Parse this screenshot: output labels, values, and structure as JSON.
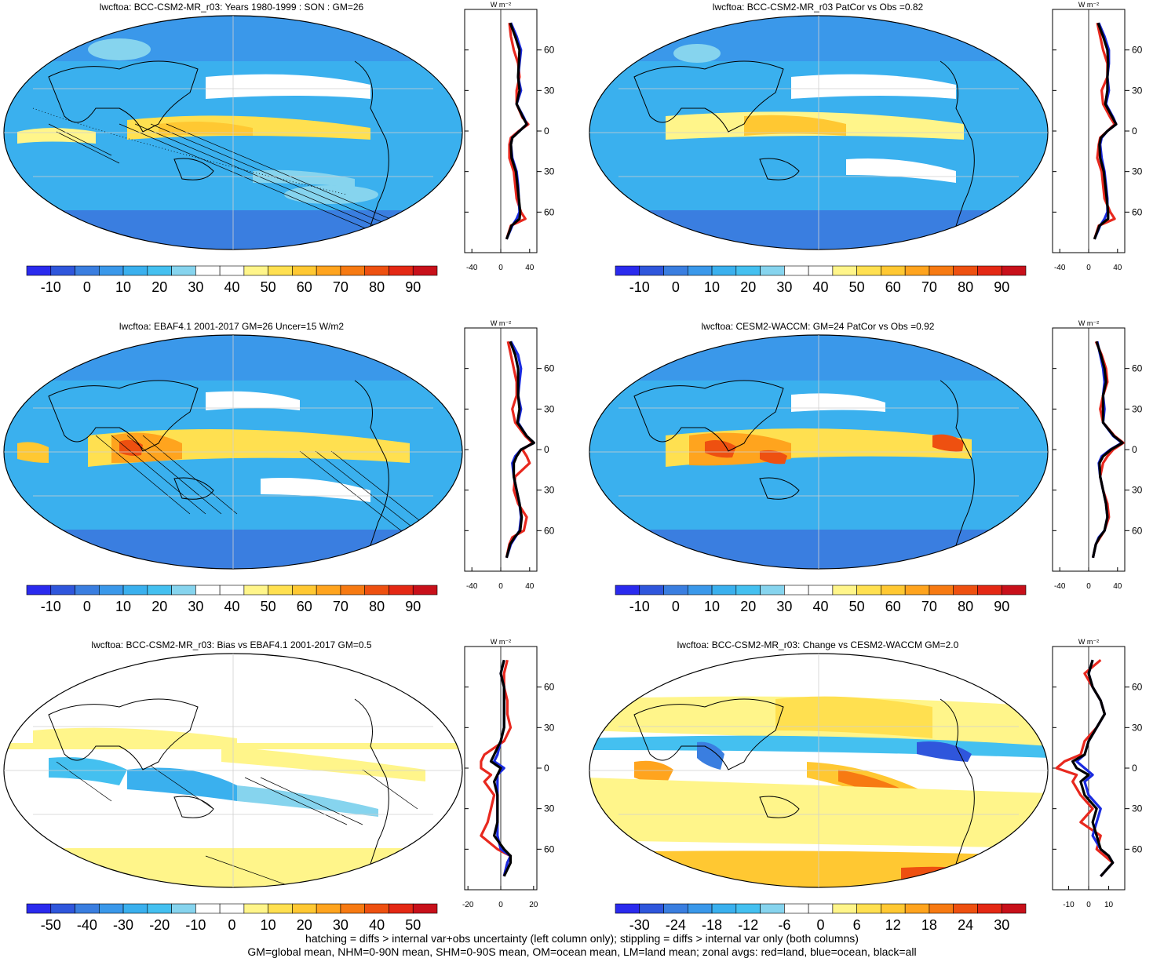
{
  "panels": [
    {
      "id": "p1",
      "title": "lwcftoa: BCC-CSM2-MR_r03: Years 1980-1999 : SON : GM=26",
      "colorbar": {
        "labels": [
          "-10",
          "0",
          "10",
          "20",
          "30",
          "40",
          "50",
          "60",
          "70",
          "80",
          "90"
        ],
        "scheme": "full"
      },
      "profile": {
        "xticks": [
          "-40",
          "0",
          "40"
        ],
        "xmin": -50,
        "xmax": 50,
        "zero": 0
      },
      "hatching": true
    },
    {
      "id": "p2",
      "title": "lwcftoa: BCC-CSM2-MR_r03 PatCor vs Obs =0.82",
      "colorbar": {
        "labels": [
          "-10",
          "0",
          "10",
          "20",
          "30",
          "40",
          "50",
          "60",
          "70",
          "80",
          "90"
        ],
        "scheme": "full"
      },
      "profile": {
        "xticks": [
          "-40",
          "0",
          "40"
        ],
        "xmin": -50,
        "xmax": 50,
        "zero": 0
      },
      "hatching": false
    },
    {
      "id": "p3",
      "title": "lwcftoa: EBAF4.1 2001-2017 GM=26 Uncer=15 W/m2",
      "colorbar": {
        "labels": [
          "-10",
          "0",
          "10",
          "20",
          "30",
          "40",
          "50",
          "60",
          "70",
          "80",
          "90"
        ],
        "scheme": "full"
      },
      "profile": {
        "xticks": [
          "-40",
          "0",
          "40"
        ],
        "xmin": -50,
        "xmax": 50,
        "zero": 0
      },
      "hatching": true
    },
    {
      "id": "p4",
      "title": "lwcftoa: CESM2-WACCM: GM=24 PatCor vs Obs =0.92",
      "colorbar": {
        "labels": [
          "-10",
          "0",
          "10",
          "20",
          "30",
          "40",
          "50",
          "60",
          "70",
          "80",
          "90"
        ],
        "scheme": "full"
      },
      "profile": {
        "xticks": [
          "-40",
          "0",
          "40"
        ],
        "xmin": -50,
        "xmax": 50,
        "zero": 0
      },
      "hatching": false
    },
    {
      "id": "p5",
      "title": "lwcftoa: BCC-CSM2-MR_r03: Bias vs EBAF4.1 2001-2017  GM=0.5",
      "colorbar": {
        "labels": [
          "-50",
          "-40",
          "-30",
          "-20",
          "-10",
          "0",
          "10",
          "20",
          "30",
          "40",
          "50"
        ],
        "scheme": "diff"
      },
      "profile": {
        "xticks": [
          "-20",
          "0",
          "20"
        ],
        "xmin": -22,
        "xmax": 22,
        "zero": 0
      },
      "hatching": true
    },
    {
      "id": "p6",
      "title": "lwcftoa: BCC-CSM2-MR_r03: Change vs CESM2-WACCM GM=2.0",
      "colorbar": {
        "labels": [
          "-30",
          "-24",
          "-18",
          "-12",
          "-6",
          "0",
          "6",
          "12",
          "18",
          "24",
          "30"
        ],
        "scheme": "diff"
      },
      "profile": {
        "xticks": [
          "-10",
          "0",
          "10"
        ],
        "xmin": -18,
        "xmax": 18,
        "zero": 0
      },
      "hatching": false
    }
  ],
  "profile_units": "W m⁻²",
  "lat_labels": [
    "60N",
    "30N",
    "0",
    "30S",
    "60S"
  ],
  "colors": {
    "full": [
      "#2a2aee",
      "#2f56dc",
      "#3a7ee0",
      "#3a98ea",
      "#3ab0ee",
      "#44c0f0",
      "#86d4ee",
      "#ffffff",
      "#ffffff",
      "#fff58a",
      "#ffe050",
      "#ffc832",
      "#ffa41e",
      "#f77a12",
      "#ee5010",
      "#e42814",
      "#c8101a"
    ],
    "diff": [
      "#2a2aee",
      "#2f56dc",
      "#3a7ee0",
      "#3a98ea",
      "#3ab0ee",
      "#44c0f0",
      "#86d4ee",
      "#ffffff",
      "#ffffff",
      "#fff58a",
      "#ffe050",
      "#ffc832",
      "#ffa41e",
      "#f77a12",
      "#ee5010",
      "#e42814",
      "#c8101a"
    ],
    "land": "#e8281e",
    "ocean": "#1a2be0",
    "all": "#000000"
  },
  "chart_data": [
    {
      "type": "heatmap",
      "panel": "p1",
      "title": "lwcftoa: BCC-CSM2-MR_r03: Years 1980-1999 : SON : GM=26",
      "colorbar_ticks": [
        -10,
        0,
        10,
        20,
        30,
        40,
        50,
        60,
        70,
        80,
        90
      ]
    },
    {
      "type": "line",
      "panel": "p1",
      "ylabel_ticks": [
        "60N",
        "30N",
        "0",
        "30S",
        "60S"
      ],
      "xlim": [
        -50,
        50
      ],
      "x_ticks": [
        -40,
        0,
        40
      ],
      "lat": [
        80,
        70,
        60,
        50,
        40,
        30,
        20,
        10,
        5,
        0,
        -5,
        -10,
        -20,
        -30,
        -40,
        -50,
        -60,
        -65,
        -70,
        -80
      ],
      "series": [
        {
          "name": "land",
          "values": [
            12,
            14,
            18,
            24,
            26,
            22,
            22,
            30,
            38,
            25,
            14,
            12,
            12,
            18,
            20,
            22,
            28,
            34,
            14,
            8
          ]
        },
        {
          "name": "ocean",
          "values": [
            14,
            22,
            28,
            26,
            24,
            28,
            22,
            32,
            36,
            26,
            16,
            14,
            16,
            22,
            24,
            25,
            26,
            22,
            16,
            8
          ]
        },
        {
          "name": "all",
          "values": [
            13,
            20,
            26,
            25,
            24,
            26,
            22,
            31,
            36,
            26,
            16,
            14,
            15,
            21,
            23,
            25,
            27,
            26,
            15,
            8
          ]
        }
      ]
    },
    {
      "type": "heatmap",
      "panel": "p2",
      "title": "lwcftoa: BCC-CSM2-MR_r03 PatCor vs Obs =0.82",
      "colorbar_ticks": [
        -10,
        0,
        10,
        20,
        30,
        40,
        50,
        60,
        70,
        80,
        90
      ]
    },
    {
      "type": "line",
      "panel": "p2",
      "xlim": [
        -50,
        50
      ],
      "x_ticks": [
        -40,
        0,
        40
      ],
      "lat": [
        80,
        70,
        60,
        50,
        40,
        30,
        20,
        10,
        5,
        0,
        -5,
        -10,
        -20,
        -30,
        -40,
        -50,
        -60,
        -65,
        -70,
        -80
      ],
      "series": [
        {
          "name": "land",
          "values": [
            12,
            16,
            20,
            26,
            26,
            18,
            20,
            30,
            36,
            26,
            16,
            14,
            12,
            18,
            20,
            22,
            30,
            36,
            14,
            8
          ]
        },
        {
          "name": "ocean",
          "values": [
            14,
            22,
            28,
            28,
            26,
            28,
            24,
            34,
            38,
            26,
            18,
            16,
            18,
            22,
            24,
            26,
            26,
            22,
            16,
            8
          ]
        },
        {
          "name": "all",
          "values": [
            13,
            20,
            26,
            27,
            26,
            26,
            23,
            33,
            38,
            26,
            17,
            15,
            16,
            21,
            23,
            25,
            27,
            27,
            15,
            8
          ]
        }
      ]
    },
    {
      "type": "heatmap",
      "panel": "p3",
      "title": "lwcftoa: EBAF4.1 2001-2017 GM=26 Uncer=15 W/m2",
      "colorbar_ticks": [
        -10,
        0,
        10,
        20,
        30,
        40,
        50,
        60,
        70,
        80,
        90
      ]
    },
    {
      "type": "line",
      "panel": "p3",
      "xlim": [
        -50,
        50
      ],
      "x_ticks": [
        -40,
        0,
        40
      ],
      "lat": [
        80,
        70,
        60,
        50,
        40,
        30,
        20,
        10,
        5,
        0,
        -5,
        -10,
        -20,
        -30,
        -40,
        -50,
        -60,
        -65,
        -70,
        -80
      ],
      "series": [
        {
          "name": "land",
          "values": [
            10,
            14,
            18,
            22,
            22,
            16,
            20,
            34,
            44,
            30,
            36,
            40,
            20,
            18,
            24,
            36,
            32,
            16,
            12,
            8
          ]
        },
        {
          "name": "ocean",
          "values": [
            14,
            24,
            28,
            26,
            24,
            28,
            24,
            36,
            46,
            28,
            20,
            16,
            18,
            22,
            26,
            28,
            26,
            20,
            14,
            8
          ]
        },
        {
          "name": "all",
          "values": [
            13,
            20,
            24,
            24,
            24,
            26,
            23,
            36,
            46,
            28,
            22,
            18,
            18,
            22,
            26,
            29,
            27,
            19,
            13,
            8
          ]
        }
      ]
    },
    {
      "type": "heatmap",
      "panel": "p4",
      "title": "lwcftoa: CESM2-WACCM: GM=24 PatCor vs Obs =0.92",
      "colorbar_ticks": [
        -10,
        0,
        10,
        20,
        30,
        40,
        50,
        60,
        70,
        80,
        90
      ]
    },
    {
      "type": "line",
      "panel": "p4",
      "xlim": [
        -50,
        50
      ],
      "x_ticks": [
        -40,
        0,
        40
      ],
      "lat": [
        80,
        70,
        60,
        50,
        40,
        30,
        20,
        10,
        5,
        0,
        -5,
        -10,
        -20,
        -30,
        -40,
        -50,
        -60,
        -65,
        -70,
        -80
      ],
      "series": [
        {
          "name": "land",
          "values": [
            10,
            18,
            24,
            26,
            20,
            16,
            20,
            36,
            48,
            34,
            26,
            20,
            16,
            20,
            26,
            28,
            22,
            16,
            10,
            6
          ]
        },
        {
          "name": "ocean",
          "values": [
            12,
            16,
            20,
            22,
            20,
            22,
            20,
            34,
            46,
            30,
            18,
            14,
            16,
            20,
            24,
            26,
            22,
            14,
            10,
            6
          ]
        },
        {
          "name": "all",
          "values": [
            11,
            17,
            22,
            24,
            20,
            20,
            20,
            35,
            47,
            31,
            20,
            15,
            16,
            20,
            24,
            26,
            22,
            15,
            10,
            6
          ]
        }
      ]
    },
    {
      "type": "heatmap",
      "panel": "p5",
      "title": "lwcftoa: BCC-CSM2-MR_r03: Bias vs EBAF4.1 2001-2017  GM=0.5",
      "colorbar_ticks": [
        -50,
        -40,
        -30,
        -20,
        -10,
        0,
        10,
        20,
        30,
        40,
        50
      ]
    },
    {
      "type": "line",
      "panel": "p5",
      "xlim": [
        -22,
        22
      ],
      "x_ticks": [
        -20,
        0,
        20
      ],
      "lat": [
        80,
        70,
        60,
        50,
        40,
        30,
        20,
        10,
        5,
        0,
        -5,
        -10,
        -20,
        -30,
        -40,
        -50,
        -60,
        -65,
        -70,
        -80
      ],
      "series": [
        {
          "name": "land",
          "values": [
            4,
            2,
            2,
            4,
            4,
            6,
            2,
            -10,
            -12,
            -12,
            -6,
            -10,
            -4,
            -6,
            -8,
            -12,
            -2,
            6,
            4,
            2
          ]
        },
        {
          "name": "ocean",
          "values": [
            2,
            0,
            2,
            2,
            2,
            2,
            0,
            -2,
            -4,
            2,
            -2,
            -2,
            -2,
            -2,
            -2,
            -2,
            0,
            6,
            4,
            2
          ]
        },
        {
          "name": "all",
          "values": [
            2,
            0,
            2,
            2,
            2,
            2,
            0,
            -4,
            -6,
            0,
            -2,
            -4,
            -2,
            -2,
            -2,
            -4,
            2,
            6,
            6,
            2
          ]
        }
      ]
    },
    {
      "type": "heatmap",
      "panel": "p6",
      "title": "lwcftoa: BCC-CSM2-MR_r03: Change vs CESM2-WACCM GM=2.0",
      "colorbar_ticks": [
        -30,
        -24,
        -18,
        -12,
        -6,
        0,
        6,
        12,
        18,
        24,
        30
      ]
    },
    {
      "type": "line",
      "panel": "p6",
      "xlim": [
        -18,
        18
      ],
      "x_ticks": [
        -10,
        0,
        10
      ],
      "lat": [
        80,
        70,
        60,
        50,
        40,
        30,
        20,
        10,
        5,
        0,
        -5,
        -10,
        -20,
        -30,
        -40,
        -50,
        -60,
        -65,
        -70,
        -80
      ],
      "series": [
        {
          "name": "land",
          "values": [
            6,
            -2,
            2,
            6,
            8,
            4,
            -2,
            -4,
            -12,
            -16,
            -6,
            -8,
            -4,
            2,
            -4,
            6,
            4,
            8,
            12,
            6
          ]
        },
        {
          "name": "ocean",
          "values": [
            2,
            0,
            2,
            6,
            8,
            4,
            0,
            -2,
            -6,
            -2,
            2,
            -2,
            0,
            6,
            4,
            2,
            6,
            10,
            12,
            6
          ]
        },
        {
          "name": "all",
          "values": [
            2,
            0,
            2,
            6,
            8,
            4,
            0,
            -2,
            -8,
            -6,
            0,
            -4,
            -2,
            4,
            2,
            4,
            6,
            10,
            12,
            6
          ]
        }
      ]
    }
  ],
  "footnote": {
    "line1": "hatching = diffs > internal var+obs uncertainty (left column only); stippling = diffs > internal var only (both columns)",
    "line2": "GM=global mean, NHM=0-90N mean, SHM=0-90S mean, OM=ocean mean, LM=land mean; zonal avgs: red=land, blue=ocean, black=all"
  }
}
